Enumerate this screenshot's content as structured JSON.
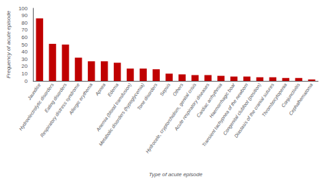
{
  "chart_data": {
    "type": "bar",
    "categories": [
      "Jaundice",
      "Hydroelectrolytic disorders",
      "Eating disorders",
      "Respiratory distress syndrome",
      "Allergic erythema",
      "Apnea",
      "Edema",
      "Anemia (blood transfusion)",
      "Metabolic disorders (hypoglycemia)",
      "Tone disorders",
      "Sepsis",
      "Others",
      "Hydrocele, cryptorchidism, genital crisis",
      "Acute respiratory diseases",
      "Cardiac arrhythmia",
      "Haemorrhagic boar",
      "Transient tachypnea of the newborn",
      "Congenital clubfoot (position)",
      "Diastasis of the cranial sutures",
      "Thrombocytopenia",
      "Conjunctivitis",
      "Cephalhematoma"
    ],
    "values": [
      86,
      51,
      50,
      32,
      27,
      27,
      25,
      17,
      17,
      16,
      10,
      9,
      8,
      8,
      7,
      6,
      6,
      5,
      5,
      4,
      4,
      2
    ],
    "color": "#c00000",
    "xlabel": "Type of acute episode",
    "ylabel": "Frequency of acute episode",
    "ylim": [
      0,
      100
    ],
    "yticks": [
      0,
      10,
      20,
      30,
      40,
      50,
      60,
      70,
      80,
      90,
      100
    ],
    "grid": false
  }
}
